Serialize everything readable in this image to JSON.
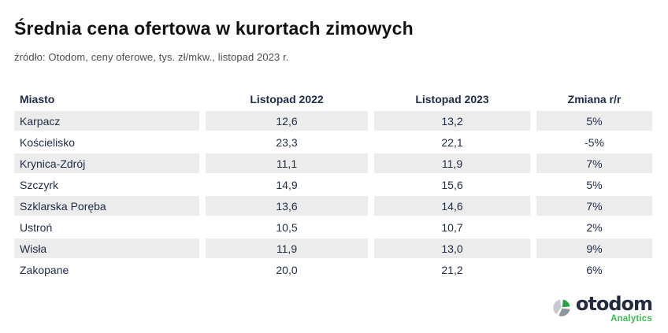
{
  "header": {
    "title": "Średnia cena ofertowa w kurortach zimowych",
    "source": "źródło: Otodom, ceny oferowe, tys. zł/mkw., listopad 2023 r."
  },
  "table": {
    "columns": [
      "Miasto",
      "Listopad 2022",
      "Listopad 2023",
      "Zmiana r/r"
    ],
    "rows": [
      {
        "city": "Karpacz",
        "nov2022": "12,6",
        "nov2023": "13,2",
        "change": "5%"
      },
      {
        "city": "Kościelisko",
        "nov2022": "23,3",
        "nov2023": "22,1",
        "change": "-5%"
      },
      {
        "city": "Krynica-Zdrój",
        "nov2022": "11,1",
        "nov2023": "11,9",
        "change": "7%"
      },
      {
        "city": "Szczyrk",
        "nov2022": "14,9",
        "nov2023": "15,6",
        "change": "5%"
      },
      {
        "city": "Szklarska Poręba",
        "nov2022": "13,6",
        "nov2023": "14,6",
        "change": "7%"
      },
      {
        "city": "Ustroń",
        "nov2022": "10,5",
        "nov2023": "10,7",
        "change": "2%"
      },
      {
        "city": "Wisła",
        "nov2022": "11,9",
        "nov2023": "13,0",
        "change": "9%"
      },
      {
        "city": "Zakopane",
        "nov2022": "20,0",
        "nov2023": "21,2",
        "change": "6%"
      }
    ]
  },
  "chart_data": {
    "type": "table",
    "title": "Średnia cena ofertowa w kurortach zimowych",
    "subtitle": "źródło: Otodom, ceny oferowe, tys. zł/mkw., listopad 2023 r.",
    "columns": [
      "Miasto",
      "Listopad 2022",
      "Listopad 2023",
      "Zmiana r/r"
    ],
    "rows": [
      [
        "Karpacz",
        12.6,
        13.2,
        "5%"
      ],
      [
        "Kościelisko",
        23.3,
        22.1,
        "-5%"
      ],
      [
        "Krynica-Zdrój",
        11.1,
        11.9,
        "7%"
      ],
      [
        "Szczyrk",
        14.9,
        15.6,
        "5%"
      ],
      [
        "Szklarska Poręba",
        13.6,
        14.6,
        "7%"
      ],
      [
        "Ustroń",
        10.5,
        10.7,
        "2%"
      ],
      [
        "Wisła",
        11.9,
        13.0,
        "9%"
      ],
      [
        "Zakopane",
        20.0,
        21.2,
        "6%"
      ]
    ],
    "units": "tys. zł/mkw.",
    "layout": {
      "striped_rows": "odd rows shaded",
      "value_alignment": "center",
      "city_alignment": "left"
    }
  },
  "logo": {
    "brand": "otodom",
    "sub": "Analytics",
    "colors": {
      "green": "#2aa147",
      "light_gray": "#c6c9cf",
      "dark_gray": "#8f96a0",
      "navy": "#252b3f",
      "analytics_green": "#3dbd54"
    }
  },
  "colors": {
    "row_stripe": "#ececec",
    "text_navy": "#212d47",
    "title": "#111111",
    "subtitle": "#4d4d4d",
    "background": "#ffffff"
  }
}
